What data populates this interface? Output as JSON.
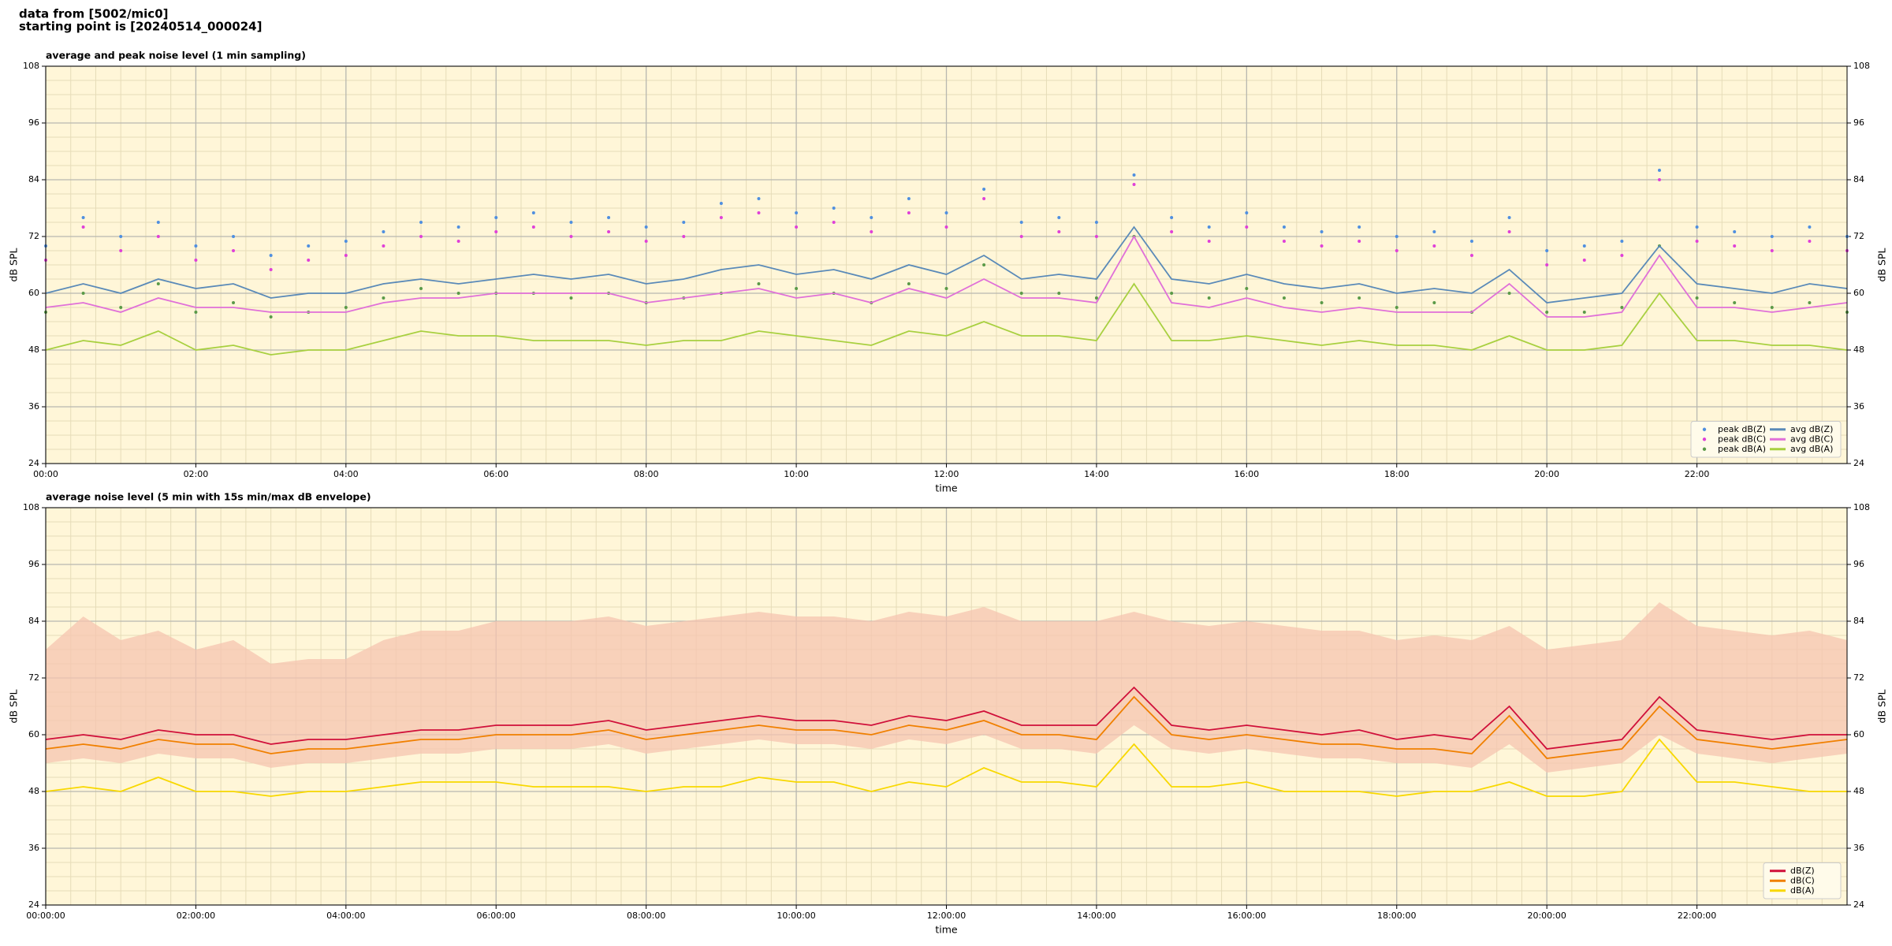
{
  "header": {
    "lines": [
      "data from [5002/mic0]",
      "starting point is [20240514_000024]"
    ]
  },
  "chart_data": [
    {
      "type": "line",
      "title": "average and peak noise level (1 min sampling)",
      "xlabel": "time",
      "ylabel": "dB SPL",
      "xlim": [
        0,
        24
      ],
      "ylim": [
        24,
        108
      ],
      "xticks": [
        {
          "value": 0,
          "label": "00:00"
        },
        {
          "value": 2,
          "label": "02:00"
        },
        {
          "value": 4,
          "label": "04:00"
        },
        {
          "value": 6,
          "label": "06:00"
        },
        {
          "value": 8,
          "label": "08:00"
        },
        {
          "value": 10,
          "label": "10:00"
        },
        {
          "value": 12,
          "label": "12:00"
        },
        {
          "value": 14,
          "label": "14:00"
        },
        {
          "value": 16,
          "label": "16:00"
        },
        {
          "value": 18,
          "label": "18:00"
        },
        {
          "value": 20,
          "label": "20:00"
        },
        {
          "value": 22,
          "label": "22:00"
        }
      ],
      "yticks": [
        24,
        36,
        48,
        60,
        72,
        84,
        96,
        108
      ],
      "grid": true,
      "legend": "lower right",
      "legend_ncol": 2,
      "x": [
        0,
        0.5,
        1,
        1.5,
        2,
        2.5,
        3,
        3.5,
        4,
        4.5,
        5,
        5.5,
        6,
        6.5,
        7,
        7.5,
        8,
        8.5,
        9,
        9.5,
        10,
        10.5,
        11,
        11.5,
        12,
        12.5,
        13,
        13.5,
        14,
        14.5,
        15,
        15.5,
        16,
        16.5,
        17,
        17.5,
        18,
        18.5,
        19,
        19.5,
        20,
        20.5,
        21,
        21.5,
        22,
        22.5,
        23,
        23.5,
        24
      ],
      "series": [
        {
          "name": "peak dB(Z)",
          "style": "scatter",
          "color": "#4f8fe0",
          "values": [
            70,
            76,
            72,
            75,
            70,
            72,
            68,
            70,
            71,
            73,
            75,
            74,
            76,
            77,
            75,
            76,
            74,
            75,
            79,
            80,
            77,
            78,
            76,
            80,
            77,
            82,
            75,
            76,
            75,
            85,
            76,
            74,
            77,
            74,
            73,
            74,
            72,
            73,
            71,
            76,
            69,
            70,
            71,
            86,
            74,
            73,
            72,
            74,
            72
          ]
        },
        {
          "name": "peak dB(C)",
          "style": "scatter",
          "color": "#e040d8",
          "values": [
            67,
            74,
            69,
            72,
            67,
            69,
            65,
            67,
            68,
            70,
            72,
            71,
            73,
            74,
            72,
            73,
            71,
            72,
            76,
            77,
            74,
            75,
            73,
            77,
            74,
            80,
            72,
            73,
            72,
            83,
            73,
            71,
            74,
            71,
            70,
            71,
            69,
            70,
            68,
            73,
            66,
            67,
            68,
            84,
            71,
            70,
            69,
            71,
            69
          ]
        },
        {
          "name": "peak dB(A)",
          "style": "scatter",
          "color": "#5a9a48",
          "values": [
            56,
            60,
            57,
            62,
            56,
            58,
            55,
            56,
            57,
            59,
            61,
            60,
            60,
            60,
            59,
            60,
            58,
            59,
            60,
            62,
            61,
            60,
            58,
            62,
            61,
            66,
            60,
            60,
            59,
            72,
            60,
            59,
            61,
            59,
            58,
            59,
            57,
            58,
            56,
            60,
            56,
            56,
            57,
            70,
            59,
            58,
            57,
            58,
            56
          ]
        },
        {
          "name": "avg dB(Z)",
          "style": "line",
          "color": "#5a8ab8",
          "values": [
            60,
            62,
            60,
            63,
            61,
            62,
            59,
            60,
            60,
            62,
            63,
            62,
            63,
            64,
            63,
            64,
            62,
            63,
            65,
            66,
            64,
            65,
            63,
            66,
            64,
            68,
            63,
            64,
            63,
            74,
            63,
            62,
            64,
            62,
            61,
            62,
            60,
            61,
            60,
            65,
            58,
            59,
            60,
            70,
            62,
            61,
            60,
            62,
            61
          ]
        },
        {
          "name": "avg dB(C)",
          "style": "line",
          "color": "#e070d8",
          "values": [
            57,
            58,
            56,
            59,
            57,
            57,
            56,
            56,
            56,
            58,
            59,
            59,
            60,
            60,
            60,
            60,
            58,
            59,
            60,
            61,
            59,
            60,
            58,
            61,
            59,
            63,
            59,
            59,
            58,
            72,
            58,
            57,
            59,
            57,
            56,
            57,
            56,
            56,
            56,
            62,
            55,
            55,
            56,
            68,
            57,
            57,
            56,
            57,
            58
          ]
        },
        {
          "name": "avg dB(A)",
          "style": "line",
          "color": "#a8d040",
          "values": [
            48,
            50,
            49,
            52,
            48,
            49,
            47,
            48,
            48,
            50,
            52,
            51,
            51,
            50,
            50,
            50,
            49,
            50,
            50,
            52,
            51,
            50,
            49,
            52,
            51,
            54,
            51,
            51,
            50,
            62,
            50,
            50,
            51,
            50,
            49,
            50,
            49,
            49,
            48,
            51,
            48,
            48,
            49,
            60,
            50,
            50,
            49,
            49,
            48
          ]
        }
      ]
    },
    {
      "type": "line",
      "title": "average noise level (5 min with 15s min/max dB envelope)",
      "xlabel": "time",
      "ylabel": "dB SPL",
      "xlim": [
        0,
        24
      ],
      "ylim": [
        24,
        108
      ],
      "xticks": [
        {
          "value": 0,
          "label": "00:00:00"
        },
        {
          "value": 2,
          "label": "02:00:00"
        },
        {
          "value": 4,
          "label": "04:00:00"
        },
        {
          "value": 6,
          "label": "06:00:00"
        },
        {
          "value": 8,
          "label": "08:00:00"
        },
        {
          "value": 10,
          "label": "10:00:00"
        },
        {
          "value": 12,
          "label": "12:00:00"
        },
        {
          "value": 14,
          "label": "14:00:00"
        },
        {
          "value": 16,
          "label": "16:00:00"
        },
        {
          "value": 18,
          "label": "18:00:00"
        },
        {
          "value": 20,
          "label": "20:00:00"
        },
        {
          "value": 22,
          "label": "22:00:00"
        }
      ],
      "yticks": [
        24,
        36,
        48,
        60,
        72,
        84,
        96,
        108
      ],
      "grid": true,
      "legend": "lower right",
      "legend_ncol": 1,
      "x": [
        0,
        0.5,
        1,
        1.5,
        2,
        2.5,
        3,
        3.5,
        4,
        4.5,
        5,
        5.5,
        6,
        6.5,
        7,
        7.5,
        8,
        8.5,
        9,
        9.5,
        10,
        10.5,
        11,
        11.5,
        12,
        12.5,
        13,
        13.5,
        14,
        14.5,
        15,
        15.5,
        16,
        16.5,
        17,
        17.5,
        18,
        18.5,
        19,
        19.5,
        20,
        20.5,
        21,
        21.5,
        22,
        22.5,
        23,
        23.5,
        24
      ],
      "envelope": {
        "color": "#f6c4b0",
        "max": [
          78,
          85,
          80,
          82,
          78,
          80,
          75,
          76,
          76,
          80,
          82,
          82,
          84,
          84,
          84,
          85,
          83,
          84,
          85,
          86,
          85,
          85,
          84,
          86,
          85,
          87,
          84,
          84,
          84,
          86,
          84,
          83,
          84,
          83,
          82,
          82,
          80,
          81,
          80,
          83,
          78,
          79,
          80,
          88,
          83,
          82,
          81,
          82,
          80
        ],
        "min": [
          54,
          55,
          54,
          56,
          55,
          55,
          53,
          54,
          54,
          55,
          56,
          56,
          57,
          57,
          57,
          58,
          56,
          57,
          58,
          59,
          58,
          58,
          57,
          59,
          58,
          60,
          57,
          57,
          56,
          62,
          57,
          56,
          57,
          56,
          55,
          55,
          54,
          54,
          53,
          58,
          52,
          53,
          54,
          60,
          56,
          55,
          54,
          55,
          56
        ]
      },
      "series": [
        {
          "name": "dB(Z)",
          "style": "line",
          "color": "#d0103a",
          "values": [
            59,
            60,
            59,
            61,
            60,
            60,
            58,
            59,
            59,
            60,
            61,
            61,
            62,
            62,
            62,
            63,
            61,
            62,
            63,
            64,
            63,
            63,
            62,
            64,
            63,
            65,
            62,
            62,
            62,
            70,
            62,
            61,
            62,
            61,
            60,
            61,
            59,
            60,
            59,
            66,
            57,
            58,
            59,
            68,
            61,
            60,
            59,
            60,
            60
          ]
        },
        {
          "name": "dB(C)",
          "style": "line",
          "color": "#f08000",
          "values": [
            57,
            58,
            57,
            59,
            58,
            58,
            56,
            57,
            57,
            58,
            59,
            59,
            60,
            60,
            60,
            61,
            59,
            60,
            61,
            62,
            61,
            61,
            60,
            62,
            61,
            63,
            60,
            60,
            59,
            68,
            60,
            59,
            60,
            59,
            58,
            58,
            57,
            57,
            56,
            64,
            55,
            56,
            57,
            66,
            59,
            58,
            57,
            58,
            59
          ]
        },
        {
          "name": "dB(A)",
          "style": "line",
          "color": "#f8d800",
          "values": [
            48,
            49,
            48,
            51,
            48,
            48,
            47,
            48,
            48,
            49,
            50,
            50,
            50,
            49,
            49,
            49,
            48,
            49,
            49,
            51,
            50,
            50,
            48,
            50,
            49,
            53,
            50,
            50,
            49,
            58,
            49,
            49,
            50,
            48,
            48,
            48,
            47,
            48,
            48,
            50,
            47,
            47,
            48,
            59,
            50,
            50,
            49,
            48,
            48
          ]
        }
      ]
    }
  ]
}
